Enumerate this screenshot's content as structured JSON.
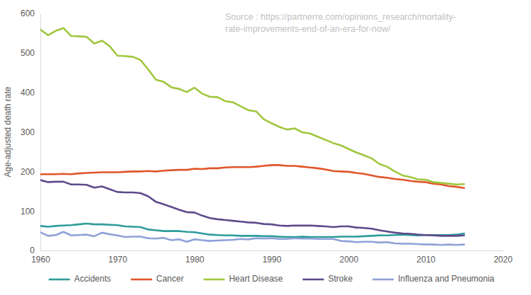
{
  "chart_data": {
    "type": "line",
    "y_label": "Age-adjusted death rate",
    "annotations": [
      "Source : https://partnerre.com/opinions_research/mortality-",
      "rate-improvements-end-of-an-era-for-now/"
    ],
    "x": [
      1960,
      1961,
      1962,
      1963,
      1964,
      1965,
      1966,
      1967,
      1968,
      1969,
      1970,
      1971,
      1972,
      1973,
      1974,
      1975,
      1976,
      1977,
      1978,
      1979,
      1980,
      1981,
      1982,
      1983,
      1984,
      1985,
      1986,
      1987,
      1988,
      1989,
      1990,
      1991,
      1992,
      1993,
      1994,
      1995,
      1996,
      1997,
      1998,
      1999,
      2000,
      2001,
      2002,
      2003,
      2004,
      2005,
      2006,
      2007,
      2008,
      2009,
      2010,
      2011,
      2012,
      2013,
      2014,
      2015
    ],
    "xlim": [
      1960,
      2020
    ],
    "xticks": [
      1960,
      1970,
      1980,
      1990,
      2000,
      2010,
      2020
    ],
    "ylim": [
      0,
      600
    ],
    "yticks": [
      0,
      100,
      200,
      300,
      400,
      500,
      600
    ],
    "grid": false,
    "legend": "bottom",
    "series": [
      {
        "name": "Accidents",
        "color": "#2e9c9b",
        "values": [
          62,
          60,
          62,
          63,
          64,
          66,
          68,
          66,
          66,
          65,
          64,
          61,
          60,
          59,
          53,
          51,
          49,
          49,
          49,
          47,
          46,
          43,
          40,
          39,
          38,
          38,
          37,
          37,
          37,
          36,
          36,
          35,
          34,
          34,
          35,
          34,
          34,
          34,
          34,
          35,
          35,
          35,
          36,
          37,
          38,
          38,
          39,
          40,
          39,
          38,
          39,
          39,
          39,
          39,
          40,
          43
        ]
      },
      {
        "name": "Cancer",
        "color": "#e0562a",
        "values": [
          193,
          193,
          193,
          194,
          193,
          195,
          196,
          197,
          198,
          198,
          198,
          199,
          200,
          200,
          201,
          200,
          202,
          203,
          204,
          204,
          207,
          206,
          208,
          208,
          210,
          211,
          211,
          211,
          212,
          214,
          216,
          216,
          214,
          214,
          212,
          210,
          208,
          205,
          201,
          200,
          199,
          196,
          194,
          190,
          186,
          184,
          181,
          179,
          176,
          174,
          173,
          169,
          167,
          163,
          161,
          158
        ]
      },
      {
        "name": "Heart Disease",
        "color": "#9fc73e",
        "values": [
          559,
          545,
          556,
          563,
          543,
          542,
          541,
          524,
          531,
          517,
          493,
          492,
          490,
          482,
          458,
          432,
          427,
          413,
          409,
          401,
          412,
          397,
          389,
          388,
          378,
          375,
          365,
          355,
          352,
          332,
          322,
          313,
          306,
          309,
          299,
          296,
          288,
          280,
          272,
          266,
          257,
          248,
          241,
          233,
          219,
          212,
          200,
          190,
          186,
          180,
          179,
          173,
          171,
          169,
          167,
          168
        ]
      },
      {
        "name": "Stroke",
        "color": "#5e4b8c",
        "values": [
          178,
          173,
          174,
          174,
          167,
          167,
          166,
          159,
          162,
          155,
          148,
          147,
          147,
          145,
          137,
          123,
          117,
          110,
          103,
          97,
          96,
          88,
          82,
          79,
          77,
          75,
          73,
          71,
          70,
          67,
          66,
          63,
          62,
          63,
          63,
          63,
          62,
          61,
          59,
          61,
          61,
          58,
          57,
          55,
          51,
          48,
          45,
          43,
          42,
          40,
          39,
          38,
          37,
          37,
          37,
          38
        ]
      },
      {
        "name": "Influenza and Pneumonia",
        "color": "#8fa1d8",
        "values": [
          46,
          37,
          39,
          47,
          38,
          39,
          40,
          36,
          45,
          41,
          38,
          34,
          35,
          35,
          31,
          30,
          32,
          26,
          28,
          22,
          28,
          26,
          24,
          25,
          26,
          27,
          29,
          28,
          31,
          30,
          31,
          29,
          29,
          31,
          30,
          30,
          29,
          29,
          29,
          24,
          23,
          21,
          22,
          22,
          20,
          21,
          18,
          17,
          17,
          16,
          15,
          15,
          14,
          15,
          14,
          15
        ]
      }
    ]
  }
}
